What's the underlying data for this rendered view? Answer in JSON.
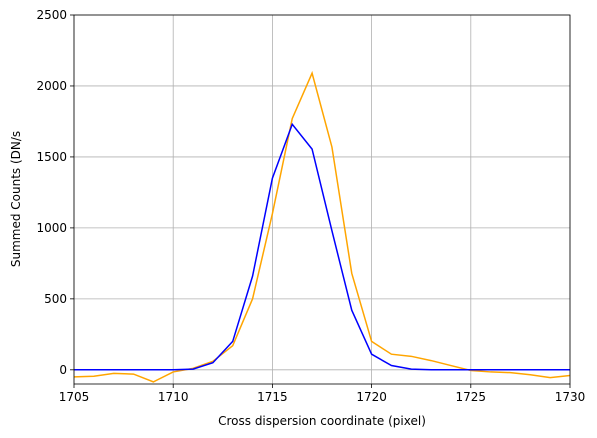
{
  "chart_data": {
    "type": "line",
    "xlabel": "Cross dispersion coordinate (pixel)",
    "ylabel": "Summed Counts (DN/s",
    "x": [
      1705,
      1706,
      1707,
      1708,
      1709,
      1710,
      1711,
      1712,
      1713,
      1714,
      1715,
      1716,
      1717,
      1718,
      1719,
      1720,
      1721,
      1722,
      1723,
      1724,
      1725,
      1726,
      1727,
      1728,
      1729,
      1730
    ],
    "series": [
      {
        "color": "orange",
        "values": [
          -50,
          -45,
          -25,
          -30,
          -85,
          -15,
          10,
          60,
          170,
          500,
          1100,
          1770,
          2090,
          1570,
          680,
          200,
          110,
          95,
          65,
          30,
          -5,
          -15,
          -20,
          -35,
          -55,
          -40
        ]
      },
      {
        "color": "blue",
        "values": [
          0,
          0,
          0,
          0,
          0,
          0,
          5,
          50,
          200,
          660,
          1350,
          1730,
          1555,
          980,
          420,
          110,
          30,
          5,
          0,
          0,
          0,
          0,
          0,
          0,
          0,
          0
        ]
      }
    ],
    "xlim": [
      1705,
      1730
    ],
    "xticks": [
      1705,
      1710,
      1715,
      1720,
      1725,
      1730
    ],
    "ylim": [
      -100,
      2500
    ],
    "yticks": [
      0,
      500,
      1000,
      1500,
      2000,
      2500
    ],
    "grid": true
  }
}
